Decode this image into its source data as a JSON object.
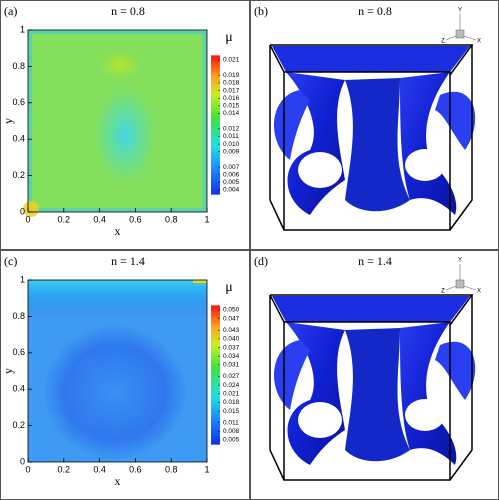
{
  "chart_data": [
    {
      "type": "contour",
      "label": "(a)",
      "title": "n = 0.8",
      "xlabel": "x",
      "ylabel": "y",
      "xlim": [
        0,
        1
      ],
      "xticks": [
        0,
        0.2,
        0.4,
        0.6,
        0.8,
        1
      ],
      "ylim": [
        0,
        1
      ],
      "yticks": [
        0,
        0.2,
        0.4,
        0.6,
        0.8,
        1
      ],
      "colorbar_title": "μ",
      "colorbar_ticks": [
        {
          "value": 0.021,
          "label": "0.021"
        },
        {
          "value": 0.019,
          "label": "0.019"
        },
        {
          "value": 0.018,
          "label": "0.018"
        },
        {
          "value": 0.017,
          "label": "0.017"
        },
        {
          "value": 0.016,
          "label": "0.016"
        },
        {
          "value": 0.015,
          "label": "0.015"
        },
        {
          "value": 0.014,
          "label": "0.014"
        },
        {
          "value": 0.012,
          "label": "0.012"
        },
        {
          "value": 0.011,
          "label": "0.011"
        },
        {
          "value": 0.01,
          "label": "0.010"
        },
        {
          "value": 0.009,
          "label": "0.009"
        },
        {
          "value": 0.007,
          "label": "0.007"
        },
        {
          "value": 0.006,
          "label": "0.006"
        },
        {
          "value": 0.005,
          "label": "0.005"
        },
        {
          "value": 0.004,
          "label": "0.004"
        }
      ],
      "field": "green"
    },
    {
      "type": "isosurface",
      "label": "(b)",
      "title": "n = 0.8",
      "triad": [
        "Y",
        "Z",
        "X"
      ]
    },
    {
      "type": "contour",
      "label": "(c)",
      "title": "n = 1.4",
      "xlabel": "x",
      "ylabel": "y",
      "xlim": [
        0,
        1
      ],
      "xticks": [
        0,
        0.2,
        0.4,
        0.6,
        0.8,
        1
      ],
      "ylim": [
        0,
        1
      ],
      "yticks": [
        0,
        0.2,
        0.4,
        0.6,
        0.8,
        1
      ],
      "colorbar_title": "μ",
      "colorbar_ticks": [
        {
          "value": 0.05,
          "label": "0.050"
        },
        {
          "value": 0.047,
          "label": "0.047"
        },
        {
          "value": 0.043,
          "label": "0.043"
        },
        {
          "value": 0.04,
          "label": "0.040"
        },
        {
          "value": 0.037,
          "label": "0.037"
        },
        {
          "value": 0.034,
          "label": "0.034"
        },
        {
          "value": 0.031,
          "label": "0.031"
        },
        {
          "value": 0.027,
          "label": "0.027"
        },
        {
          "value": 0.024,
          "label": "0.024"
        },
        {
          "value": 0.021,
          "label": "0.021"
        },
        {
          "value": 0.018,
          "label": "0.018"
        },
        {
          "value": 0.015,
          "label": "0.015"
        },
        {
          "value": 0.011,
          "label": "0.011"
        },
        {
          "value": 0.008,
          "label": "0.008"
        },
        {
          "value": 0.005,
          "label": "0.005"
        }
      ],
      "field": "blue"
    },
    {
      "type": "isosurface",
      "label": "(d)",
      "title": "n = 1.4",
      "triad": [
        "Y",
        "Z",
        "X"
      ]
    }
  ]
}
